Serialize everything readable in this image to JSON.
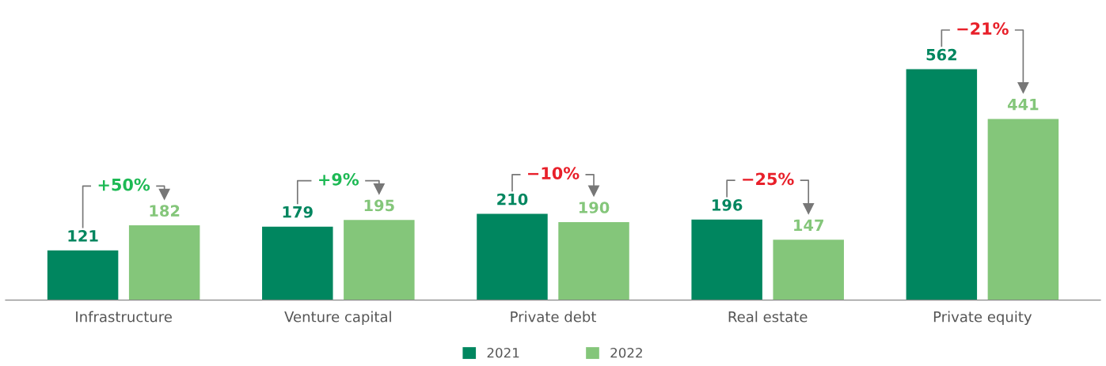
{
  "chart_data": {
    "type": "bar",
    "categories": [
      "Infrastructure",
      "Venture capital",
      "Private debt",
      "Real estate",
      "Private equity"
    ],
    "series": [
      {
        "name": "2021",
        "color": "#00865f",
        "values": [
          121,
          179,
          210,
          196,
          562
        ]
      },
      {
        "name": "2022",
        "color": "#84c67a",
        "values": [
          182,
          195,
          190,
          147,
          441
        ]
      }
    ],
    "data_labels": true,
    "legend": "bottom",
    "grid": false,
    "annotations": [
      "+50%",
      "+9%",
      "−10%",
      "−25%",
      "−21%"
    ]
  }
}
